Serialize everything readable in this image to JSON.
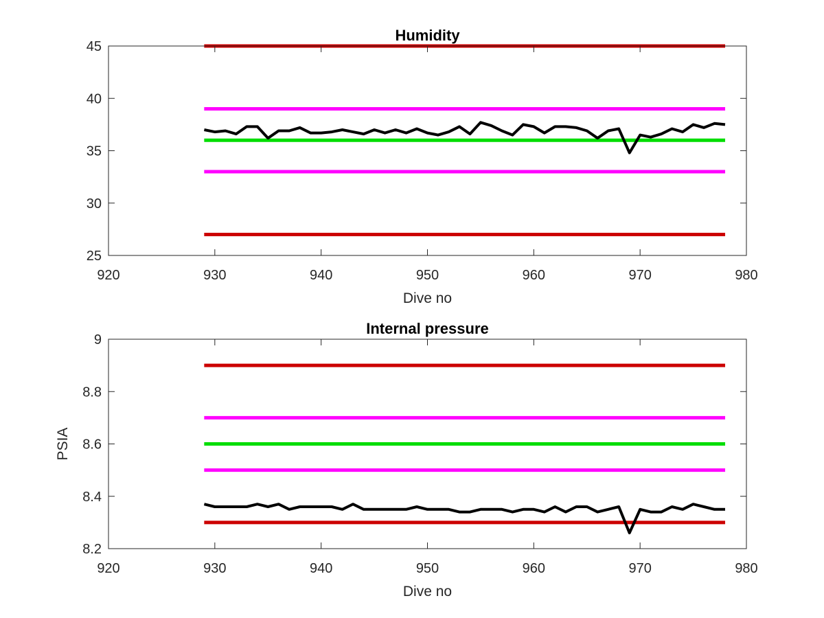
{
  "figure": {
    "background": "#ffffff"
  },
  "colors": {
    "outer_limit": "#cc0000",
    "inner_limit": "#ff00ff",
    "target": "#00dd00",
    "measured": "#000000",
    "axis": "#262626"
  },
  "chart_data": [
    {
      "type": "line",
      "title": "Humidity",
      "xlabel": "Dive no",
      "ylabel": "",
      "xlim": [
        920,
        980
      ],
      "ylim": [
        25,
        45
      ],
      "xticks": [
        920,
        930,
        940,
        950,
        960,
        970,
        980
      ],
      "yticks": [
        25,
        30,
        35,
        40,
        45
      ],
      "grid": false,
      "reference_lines": [
        {
          "role": "outer_limit",
          "y": 45,
          "x": [
            929,
            978
          ]
        },
        {
          "role": "inner_limit",
          "y": 39,
          "x": [
            929,
            978
          ]
        },
        {
          "role": "target",
          "y": 36,
          "x": [
            929,
            978
          ]
        },
        {
          "role": "inner_limit",
          "y": 33,
          "x": [
            929,
            978
          ]
        },
        {
          "role": "outer_limit",
          "y": 27,
          "x": [
            929,
            978
          ]
        }
      ],
      "series": [
        {
          "role": "measured",
          "x": [
            929,
            930,
            931,
            932,
            933,
            934,
            935,
            936,
            937,
            938,
            939,
            940,
            941,
            942,
            943,
            944,
            945,
            946,
            947,
            948,
            949,
            950,
            951,
            952,
            953,
            954,
            955,
            956,
            957,
            958,
            959,
            960,
            961,
            962,
            963,
            964,
            965,
            966,
            967,
            968,
            969,
            970,
            971,
            972,
            973,
            974,
            975,
            976,
            977,
            978
          ],
          "values": [
            37.0,
            36.8,
            36.9,
            36.6,
            37.3,
            37.3,
            36.2,
            36.9,
            36.9,
            37.2,
            36.7,
            36.7,
            36.8,
            37.0,
            36.8,
            36.6,
            37.0,
            36.7,
            37.0,
            36.7,
            37.1,
            36.7,
            36.5,
            36.8,
            37.3,
            36.6,
            37.7,
            37.4,
            36.9,
            36.5,
            37.5,
            37.3,
            36.7,
            37.3,
            37.3,
            37.2,
            36.9,
            36.2,
            36.9,
            37.1,
            34.8,
            36.5,
            36.3,
            36.6,
            37.1,
            36.8,
            37.5,
            37.2,
            37.6,
            37.5
          ]
        }
      ]
    },
    {
      "type": "line",
      "title": "Internal pressure",
      "xlabel": "Dive no",
      "ylabel": "PSIA",
      "xlim": [
        920,
        980
      ],
      "ylim": [
        8.2,
        9
      ],
      "xticks": [
        920,
        930,
        940,
        950,
        960,
        970,
        980
      ],
      "yticks": [
        8.2,
        8.4,
        8.6,
        8.8,
        9
      ],
      "grid": false,
      "reference_lines": [
        {
          "role": "outer_limit",
          "y": 8.9,
          "x": [
            929,
            978
          ]
        },
        {
          "role": "inner_limit",
          "y": 8.7,
          "x": [
            929,
            978
          ]
        },
        {
          "role": "target",
          "y": 8.6,
          "x": [
            929,
            978
          ]
        },
        {
          "role": "inner_limit",
          "y": 8.5,
          "x": [
            929,
            978
          ]
        },
        {
          "role": "outer_limit",
          "y": 8.3,
          "x": [
            929,
            978
          ]
        }
      ],
      "series": [
        {
          "role": "measured",
          "x": [
            929,
            930,
            931,
            932,
            933,
            934,
            935,
            936,
            937,
            938,
            939,
            940,
            941,
            942,
            943,
            944,
            945,
            946,
            947,
            948,
            949,
            950,
            951,
            952,
            953,
            954,
            955,
            956,
            957,
            958,
            959,
            960,
            961,
            962,
            963,
            964,
            965,
            966,
            967,
            968,
            969,
            970,
            971,
            972,
            973,
            974,
            975,
            976,
            977,
            978
          ],
          "values": [
            8.37,
            8.36,
            8.36,
            8.36,
            8.36,
            8.37,
            8.36,
            8.37,
            8.35,
            8.36,
            8.36,
            8.36,
            8.36,
            8.35,
            8.37,
            8.35,
            8.35,
            8.35,
            8.35,
            8.35,
            8.36,
            8.35,
            8.35,
            8.35,
            8.34,
            8.34,
            8.35,
            8.35,
            8.35,
            8.34,
            8.35,
            8.35,
            8.34,
            8.36,
            8.34,
            8.36,
            8.36,
            8.34,
            8.35,
            8.36,
            8.26,
            8.35,
            8.34,
            8.34,
            8.36,
            8.35,
            8.37,
            8.36,
            8.35,
            8.35
          ]
        }
      ]
    }
  ]
}
